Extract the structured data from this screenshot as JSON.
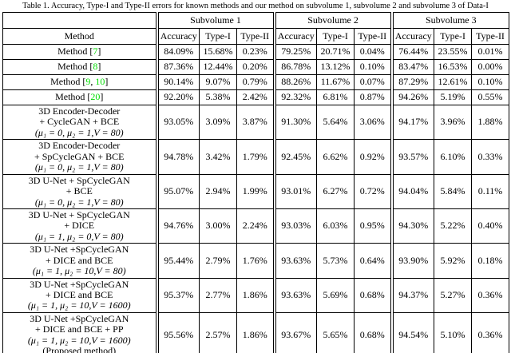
{
  "title": "Table 1. Accuracy, Type-I and Type-II errors for known methods and our method on subvolume 1, subvolume 2 and subvolume 3 of Data-I",
  "colors": {
    "citation": "#00dd00"
  },
  "table": {
    "method_header": "Method",
    "groups": [
      "Subvolume 1",
      "Subvolume 2",
      "Subvolume 3"
    ],
    "col_headers": [
      "Accuracy",
      "Type-I",
      "Type-II"
    ],
    "rows": [
      {
        "method": {
          "lines": [
            [
              {
                "text": "Method [",
                "green": false
              },
              {
                "text": "7",
                "green": true
              },
              {
                "text": "]",
                "green": false
              }
            ]
          ]
        },
        "values": [
          "84.09%",
          "15.68%",
          "0.23%",
          "79.25%",
          "20.71%",
          "0.04%",
          "76.44%",
          "23.55%",
          "0.01%"
        ]
      },
      {
        "method": {
          "lines": [
            [
              {
                "text": "Method [",
                "green": false
              },
              {
                "text": "8",
                "green": true
              },
              {
                "text": "]",
                "green": false
              }
            ]
          ]
        },
        "values": [
          "87.36%",
          "12.44%",
          "0.20%",
          "86.78%",
          "13.12%",
          "0.10%",
          "83.47%",
          "16.53%",
          "0.00%"
        ]
      },
      {
        "method": {
          "lines": [
            [
              {
                "text": "Method [",
                "green": false
              },
              {
                "text": "9",
                "green": true
              },
              {
                "text": ", ",
                "green": false
              },
              {
                "text": "10",
                "green": true
              },
              {
                "text": "]",
                "green": false
              }
            ]
          ]
        },
        "values": [
          "90.14%",
          "9.07%",
          "0.79%",
          "88.26%",
          "11.67%",
          "0.07%",
          "87.29%",
          "12.61%",
          "0.10%"
        ]
      },
      {
        "method": {
          "lines": [
            [
              {
                "text": "Method [",
                "green": false
              },
              {
                "text": "20",
                "green": true
              },
              {
                "text": "]",
                "green": false
              }
            ]
          ]
        },
        "values": [
          "92.20%",
          "5.38%",
          "2.42%",
          "92.32%",
          "6.81%",
          "0.87%",
          "94.26%",
          "5.19%",
          "0.55%"
        ]
      },
      {
        "method": {
          "lines": [
            [
              {
                "text": "3D Encoder-Decoder"
              }
            ],
            [
              {
                "text": "+ CycleGAN + BCE"
              }
            ],
            [
              {
                "text": "(μ₁ = 0, μ₂ = 1,V = 80)",
                "math": true
              }
            ]
          ]
        },
        "values": [
          "93.05%",
          "3.09%",
          "3.87%",
          "91.30%",
          "5.64%",
          "3.06%",
          "94.17%",
          "3.96%",
          "1.88%"
        ]
      },
      {
        "method": {
          "lines": [
            [
              {
                "text": "3D Encoder-Decoder"
              }
            ],
            [
              {
                "text": "+ SpCycleGAN + BCE"
              }
            ],
            [
              {
                "text": "(μ₁ = 0, μ₂ = 1,V = 80)",
                "math": true
              }
            ]
          ]
        },
        "values": [
          "94.78%",
          "3.42%",
          "1.79%",
          "92.45%",
          "6.62%",
          "0.92%",
          "93.57%",
          "6.10%",
          "0.33%"
        ]
      },
      {
        "method": {
          "lines": [
            [
              {
                "text": "3D U-Net + SpCycleGAN"
              }
            ],
            [
              {
                "text": "+ BCE"
              }
            ],
            [
              {
                "text": "(μ₁ = 0, μ₂ = 1,V = 80)",
                "math": true
              }
            ]
          ]
        },
        "values": [
          "95.07%",
          "2.94%",
          "1.99%",
          "93.01%",
          "6.27%",
          "0.72%",
          "94.04%",
          "5.84%",
          "0.11%"
        ]
      },
      {
        "method": {
          "lines": [
            [
              {
                "text": "3D U-Net + SpCycleGAN"
              }
            ],
            [
              {
                "text": "+ DICE"
              }
            ],
            [
              {
                "text": "(μ₁ = 1, μ₂ = 0,V = 80)",
                "math": true
              }
            ]
          ]
        },
        "values": [
          "94.76%",
          "3.00%",
          "2.24%",
          "93.03%",
          "6.03%",
          "0.95%",
          "94.30%",
          "5.22%",
          "0.40%"
        ]
      },
      {
        "method": {
          "lines": [
            [
              {
                "text": "3D U-Net +SpCycleGAN"
              }
            ],
            [
              {
                "text": "+ DICE and BCE"
              }
            ],
            [
              {
                "text": "(μ₁ = 1, μ₂ = 10,V = 80)",
                "math": true
              }
            ]
          ]
        },
        "values": [
          "95.44%",
          "2.79%",
          "1.76%",
          "93.63%",
          "5.73%",
          "0.64%",
          "93.90%",
          "5.92%",
          "0.18%"
        ]
      },
      {
        "method": {
          "lines": [
            [
              {
                "text": "3D U-Net +SpCycleGAN"
              }
            ],
            [
              {
                "text": "+ DICE and BCE"
              }
            ],
            [
              {
                "text": "(μ₁ = 1, μ₂ = 10,V = 1600)",
                "math": true
              }
            ]
          ]
        },
        "values": [
          "95.37%",
          "2.77%",
          "1.86%",
          "93.63%",
          "5.69%",
          "0.68%",
          "94.37%",
          "5.27%",
          "0.36%"
        ]
      },
      {
        "method": {
          "lines": [
            [
              {
                "text": "3D U-Net +SpCycleGAN"
              }
            ],
            [
              {
                "text": "+ DICE and BCE + PP"
              }
            ],
            [
              {
                "text": "(μ₁ = 1, μ₂ = 10,V = 1600)",
                "math": true
              }
            ],
            [
              {
                "text": "(Proposed method)"
              }
            ]
          ]
        },
        "values": [
          "95.56%",
          "2.57%",
          "1.86%",
          "93.67%",
          "5.65%",
          "0.68%",
          "94.54%",
          "5.10%",
          "0.36%"
        ]
      }
    ]
  }
}
